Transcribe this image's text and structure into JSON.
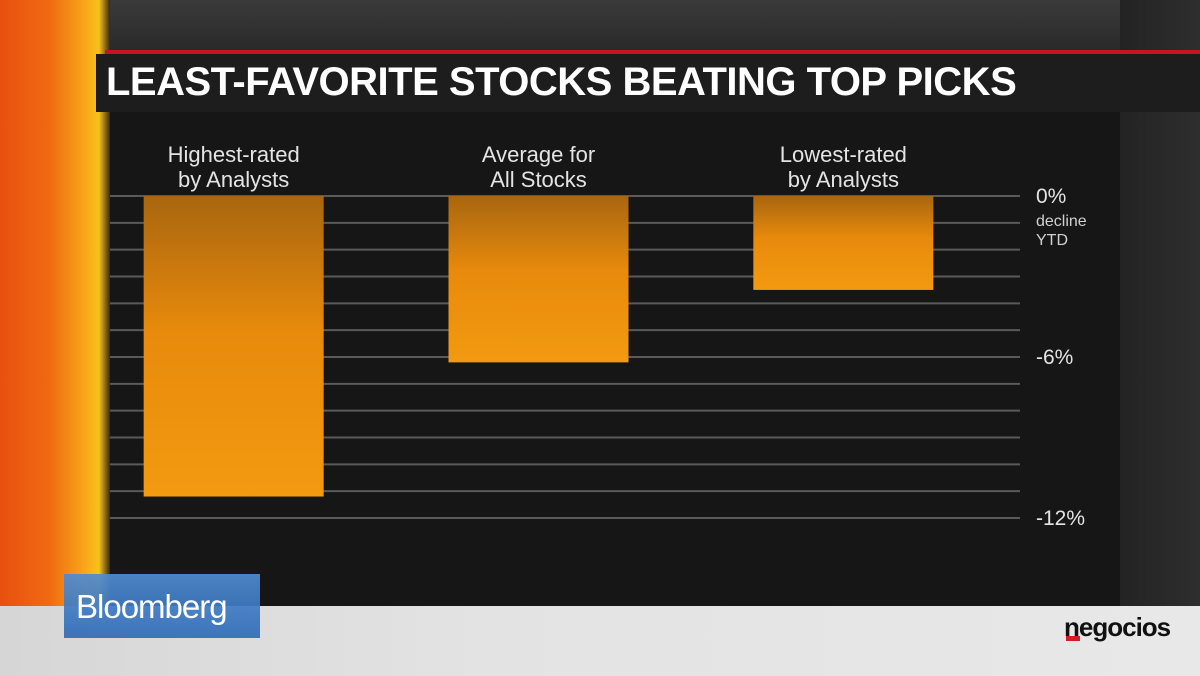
{
  "chart_data": {
    "type": "bar",
    "title": "LEAST-FAVORITE STOCKS BEATING TOP PICKS",
    "categories": [
      [
        "Highest-rated",
        "by Analysts"
      ],
      [
        "Average for",
        "All Stocks"
      ],
      [
        "Lowest-rated",
        "by Analysts"
      ]
    ],
    "values": [
      -11.2,
      -6.2,
      -3.5
    ],
    "ylim": [
      -12,
      0
    ],
    "yticks": [
      {
        "value": 0,
        "label": "0%",
        "sublabel": [
          "decline",
          "YTD"
        ]
      },
      {
        "value": -6,
        "label": "-6%",
        "sublabel": []
      },
      {
        "value": -12,
        "label": "-12%",
        "sublabel": []
      }
    ],
    "gridlines": true,
    "bar_color": "#e88a0c",
    "bar_color_top": "#a8660f"
  },
  "branding": {
    "bloomberg": "Bloomberg",
    "source": "negocios"
  }
}
